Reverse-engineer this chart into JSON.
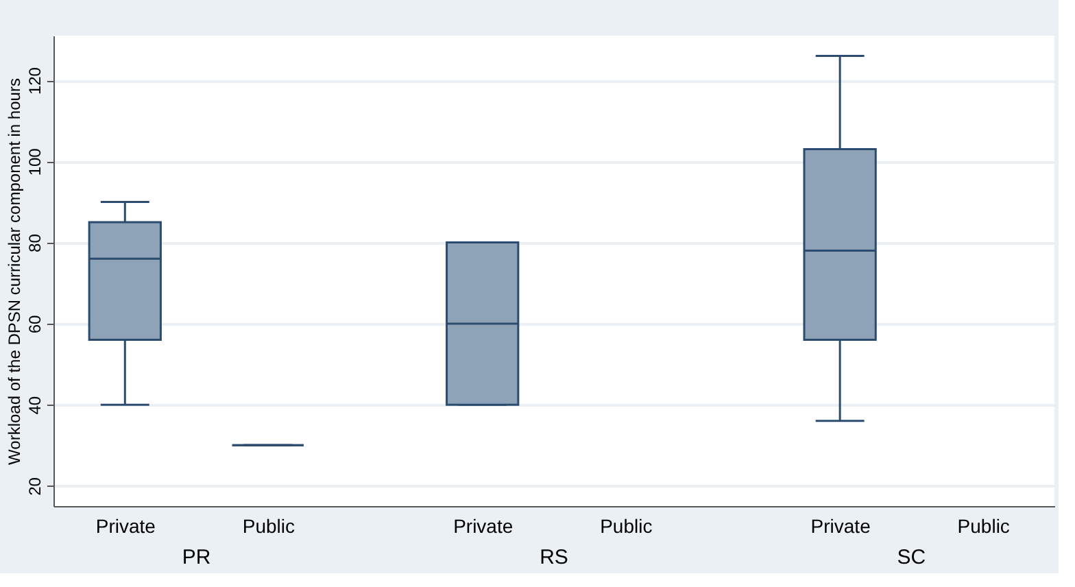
{
  "chart_data": {
    "type": "box",
    "ylabel": "Workload of the DPSN curricular component in hours",
    "categories": [
      "Private",
      "Public",
      "Private",
      "Public",
      "Private",
      "Public"
    ],
    "annotations": [
      "PR",
      "RS",
      "SC"
    ],
    "boxes": [
      {
        "low": 40,
        "q1": 56,
        "median": 76,
        "q3": 85,
        "high": 90
      },
      {
        "low": 30,
        "q1": 30,
        "median": 30,
        "q3": 30,
        "high": 30
      },
      {
        "low": 40,
        "q1": 40,
        "median": 60,
        "q3": 80,
        "high": 80
      },
      null,
      {
        "low": 36,
        "q1": 56,
        "median": 78,
        "q3": 103,
        "high": 126
      },
      null
    ],
    "colors": [
      "#8ea3b8",
      "#2c4c6f",
      "#8ea3b8",
      null,
      "#8ea3b8",
      null
    ],
    "ylim": [
      15,
      131
    ],
    "yticks": [
      20,
      40,
      60,
      80,
      100,
      120
    ],
    "grid": "y"
  }
}
